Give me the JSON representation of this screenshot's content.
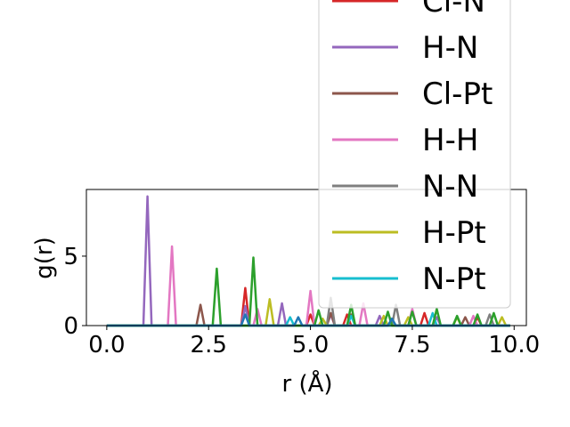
{
  "chart_data": {
    "type": "line",
    "title": "",
    "xlabel": "r (Å)",
    "ylabel": "g(r)",
    "xlim": [
      -0.5,
      10.3
    ],
    "ylim": [
      0,
      9.8
    ],
    "xticks": [
      0.0,
      2.5,
      5.0,
      7.5,
      10.0
    ],
    "xtick_labels": [
      "0.0",
      "2.5",
      "5.0",
      "7.5",
      "10.0"
    ],
    "yticks": [
      0,
      5
    ],
    "ytick_labels": [
      "0",
      "5"
    ],
    "grid": false,
    "legend_position": "top-right, extending above the axes",
    "legend_partial_entry": "Cl-N",
    "series": [
      {
        "name": "Cl-N",
        "color": "#d62728",
        "x": [
          0,
          3.3,
          3.4,
          3.5,
          3.6,
          4.9,
          5.0,
          5.1,
          5.8,
          5.9,
          6.0,
          7.7,
          7.8,
          7.9,
          9.0,
          9.1,
          9.2,
          9.9
        ],
        "y": [
          0,
          0,
          2.7,
          0,
          0,
          0,
          0.8,
          0,
          0,
          0.8,
          0,
          0,
          0.9,
          0,
          0,
          0.6,
          0,
          0
        ]
      },
      {
        "name": "H-N",
        "color": "#9467bd",
        "x": [
          0,
          0.9,
          1.0,
          1.1,
          3.3,
          3.4,
          3.5,
          4.2,
          4.3,
          4.4,
          5.4,
          5.5,
          5.6,
          6.6,
          6.7,
          6.8,
          8.0,
          8.1,
          8.2,
          9.9
        ],
        "y": [
          0,
          0,
          9.3,
          0,
          0,
          1.4,
          0,
          0,
          1.6,
          0,
          0,
          0.8,
          0,
          0,
          0.7,
          0,
          0,
          0.6,
          0,
          0
        ]
      },
      {
        "name": "Cl-Pt",
        "color": "#8c564b",
        "x": [
          0,
          2.2,
          2.3,
          2.4,
          5.4,
          5.5,
          5.6,
          5.9,
          6.0,
          6.1,
          8.7,
          8.8,
          8.9,
          9.9
        ],
        "y": [
          0,
          0,
          1.5,
          0,
          0,
          0.9,
          0,
          0,
          0.8,
          0,
          0,
          0.6,
          0,
          0
        ]
      },
      {
        "name": "H-H",
        "color": "#e377c2",
        "x": [
          0,
          1.5,
          1.6,
          1.7,
          3.6,
          3.7,
          3.8,
          4.9,
          5.0,
          5.1,
          6.2,
          6.3,
          6.4,
          7.4,
          7.5,
          7.6,
          8.9,
          9.0,
          9.1,
          9.9
        ],
        "y": [
          0,
          0,
          5.7,
          0,
          0,
          1.2,
          0,
          0,
          2.5,
          0,
          0,
          1.6,
          0,
          0,
          1.2,
          0,
          0,
          0.7,
          0,
          0
        ]
      },
      {
        "name": "N-N",
        "color": "#7f7f7f",
        "x": [
          0,
          5.4,
          5.5,
          5.6,
          7.0,
          7.1,
          7.2,
          9.3,
          9.4,
          9.5,
          9.9
        ],
        "y": [
          0,
          0,
          2.0,
          0,
          0,
          1.5,
          0,
          0,
          0.8,
          0,
          0
        ]
      },
      {
        "name": "H-Pt",
        "color": "#bcbd22",
        "x": [
          0,
          3.9,
          4.0,
          4.1,
          5.2,
          5.3,
          5.4,
          6.7,
          6.8,
          6.9,
          7.3,
          7.4,
          7.5,
          8.5,
          8.6,
          8.7,
          9.6,
          9.7,
          9.8,
          9.9
        ],
        "y": [
          0,
          0,
          1.9,
          0,
          0,
          0.5,
          0,
          0,
          0.7,
          0,
          0,
          0.6,
          0,
          0,
          0.6,
          0,
          0,
          0.6,
          0,
          0
        ]
      },
      {
        "name": "N-Pt",
        "color": "#17becf",
        "x": [
          0,
          4.4,
          4.5,
          4.6,
          5.9,
          6.0,
          6.1,
          7.9,
          8.0,
          8.1,
          9.9
        ],
        "y": [
          0,
          0,
          0.6,
          0,
          0,
          0.7,
          0,
          0,
          0.9,
          0,
          0
        ]
      },
      {
        "name": "",
        "color": "#2ca02c",
        "x": [
          0,
          2.6,
          2.7,
          2.8,
          3.5,
          3.6,
          3.7,
          5.1,
          5.2,
          5.3,
          5.9,
          6.0,
          6.1,
          6.8,
          6.9,
          7.0,
          7.4,
          7.5,
          7.6,
          8.0,
          8.1,
          8.2,
          8.5,
          8.6,
          8.7,
          9.0,
          9.1,
          9.2,
          9.4,
          9.5,
          9.6,
          9.9
        ],
        "y": [
          0,
          0,
          4.1,
          0,
          0,
          4.9,
          0,
          0,
          1.1,
          0,
          0,
          1.5,
          0,
          0,
          1.0,
          0,
          0,
          1.0,
          0,
          0,
          1.2,
          0,
          0,
          0.7,
          0,
          0,
          0.8,
          0,
          0,
          0.9,
          0,
          0
        ]
      },
      {
        "name": "",
        "color": "#1f77b4",
        "x": [
          0,
          3.3,
          3.4,
          3.5,
          4.6,
          4.7,
          4.8,
          6.9,
          7.0,
          7.1,
          9.9
        ],
        "y": [
          0,
          0,
          0.8,
          0,
          0,
          0.6,
          0,
          0,
          0.5,
          0,
          0
        ]
      }
    ]
  }
}
